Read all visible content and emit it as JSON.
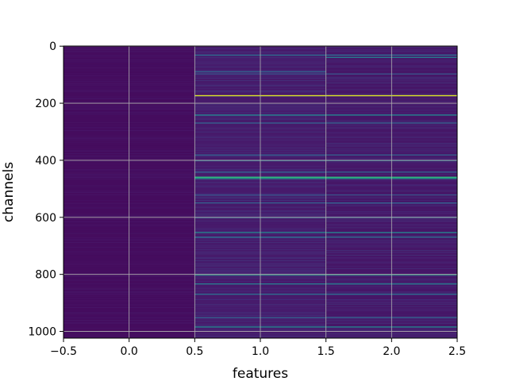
{
  "chart_data": {
    "type": "heatmap",
    "title": "",
    "xlabel": "features",
    "ylabel": "channels",
    "xlim": [
      -0.5,
      2.5
    ],
    "ylim": [
      1023.5,
      -0.5
    ],
    "x_ticks": [
      "−0.5",
      "0.0",
      "0.5",
      "1.0",
      "1.5",
      "2.0",
      "2.5"
    ],
    "x_tick_values": [
      -0.5,
      0.0,
      0.5,
      1.0,
      1.5,
      2.0,
      2.5
    ],
    "y_ticks": [
      "0",
      "200",
      "400",
      "600",
      "800",
      "1000"
    ],
    "y_tick_values": [
      0,
      200,
      400,
      600,
      800,
      1000
    ],
    "grid": true,
    "colormap": "viridis",
    "n_channels": 1024,
    "n_features": 3,
    "background_color": "#440154",
    "column_background_levels": [
      0.03,
      0.07,
      0.06
    ],
    "highlight_rows": [
      {
        "channel": 30,
        "features": [
          1,
          2
        ],
        "level": 0.35
      },
      {
        "channel": 38,
        "features": [
          2
        ],
        "level": 0.4
      },
      {
        "channel": 88,
        "features": [
          1
        ],
        "level": 0.3
      },
      {
        "channel": 96,
        "features": [
          1,
          2
        ],
        "level": 0.25
      },
      {
        "channel": 172,
        "features": [
          1,
          2
        ],
        "level": 0.95
      },
      {
        "channel": 240,
        "features": [
          1,
          2
        ],
        "level": 0.45
      },
      {
        "channel": 268,
        "features": [
          1,
          2
        ],
        "level": 0.3
      },
      {
        "channel": 380,
        "features": [
          1,
          2
        ],
        "level": 0.3
      },
      {
        "channel": 400,
        "features": [
          1,
          2
        ],
        "level": 0.35
      },
      {
        "channel": 440,
        "features": [
          1,
          2
        ],
        "level": 0.3
      },
      {
        "channel": 458,
        "features": [
          1,
          2
        ],
        "level": 0.65
      },
      {
        "channel": 462,
        "features": [
          1,
          2
        ],
        "level": 0.55
      },
      {
        "channel": 520,
        "features": [
          1,
          2
        ],
        "level": 0.25
      },
      {
        "channel": 548,
        "features": [
          1,
          2
        ],
        "level": 0.3
      },
      {
        "channel": 600,
        "features": [
          1,
          2
        ],
        "level": 0.3
      },
      {
        "channel": 652,
        "features": [
          1,
          2
        ],
        "level": 0.45
      },
      {
        "channel": 668,
        "features": [
          1,
          2
        ],
        "level": 0.35
      },
      {
        "channel": 800,
        "features": [
          1,
          2
        ],
        "level": 0.55
      },
      {
        "channel": 832,
        "features": [
          1,
          2
        ],
        "level": 0.4
      },
      {
        "channel": 868,
        "features": [
          1,
          2
        ],
        "level": 0.35
      },
      {
        "channel": 950,
        "features": [
          1,
          2
        ],
        "level": 0.3
      },
      {
        "channel": 983,
        "features": [
          1,
          2
        ],
        "level": 0.45
      }
    ]
  }
}
